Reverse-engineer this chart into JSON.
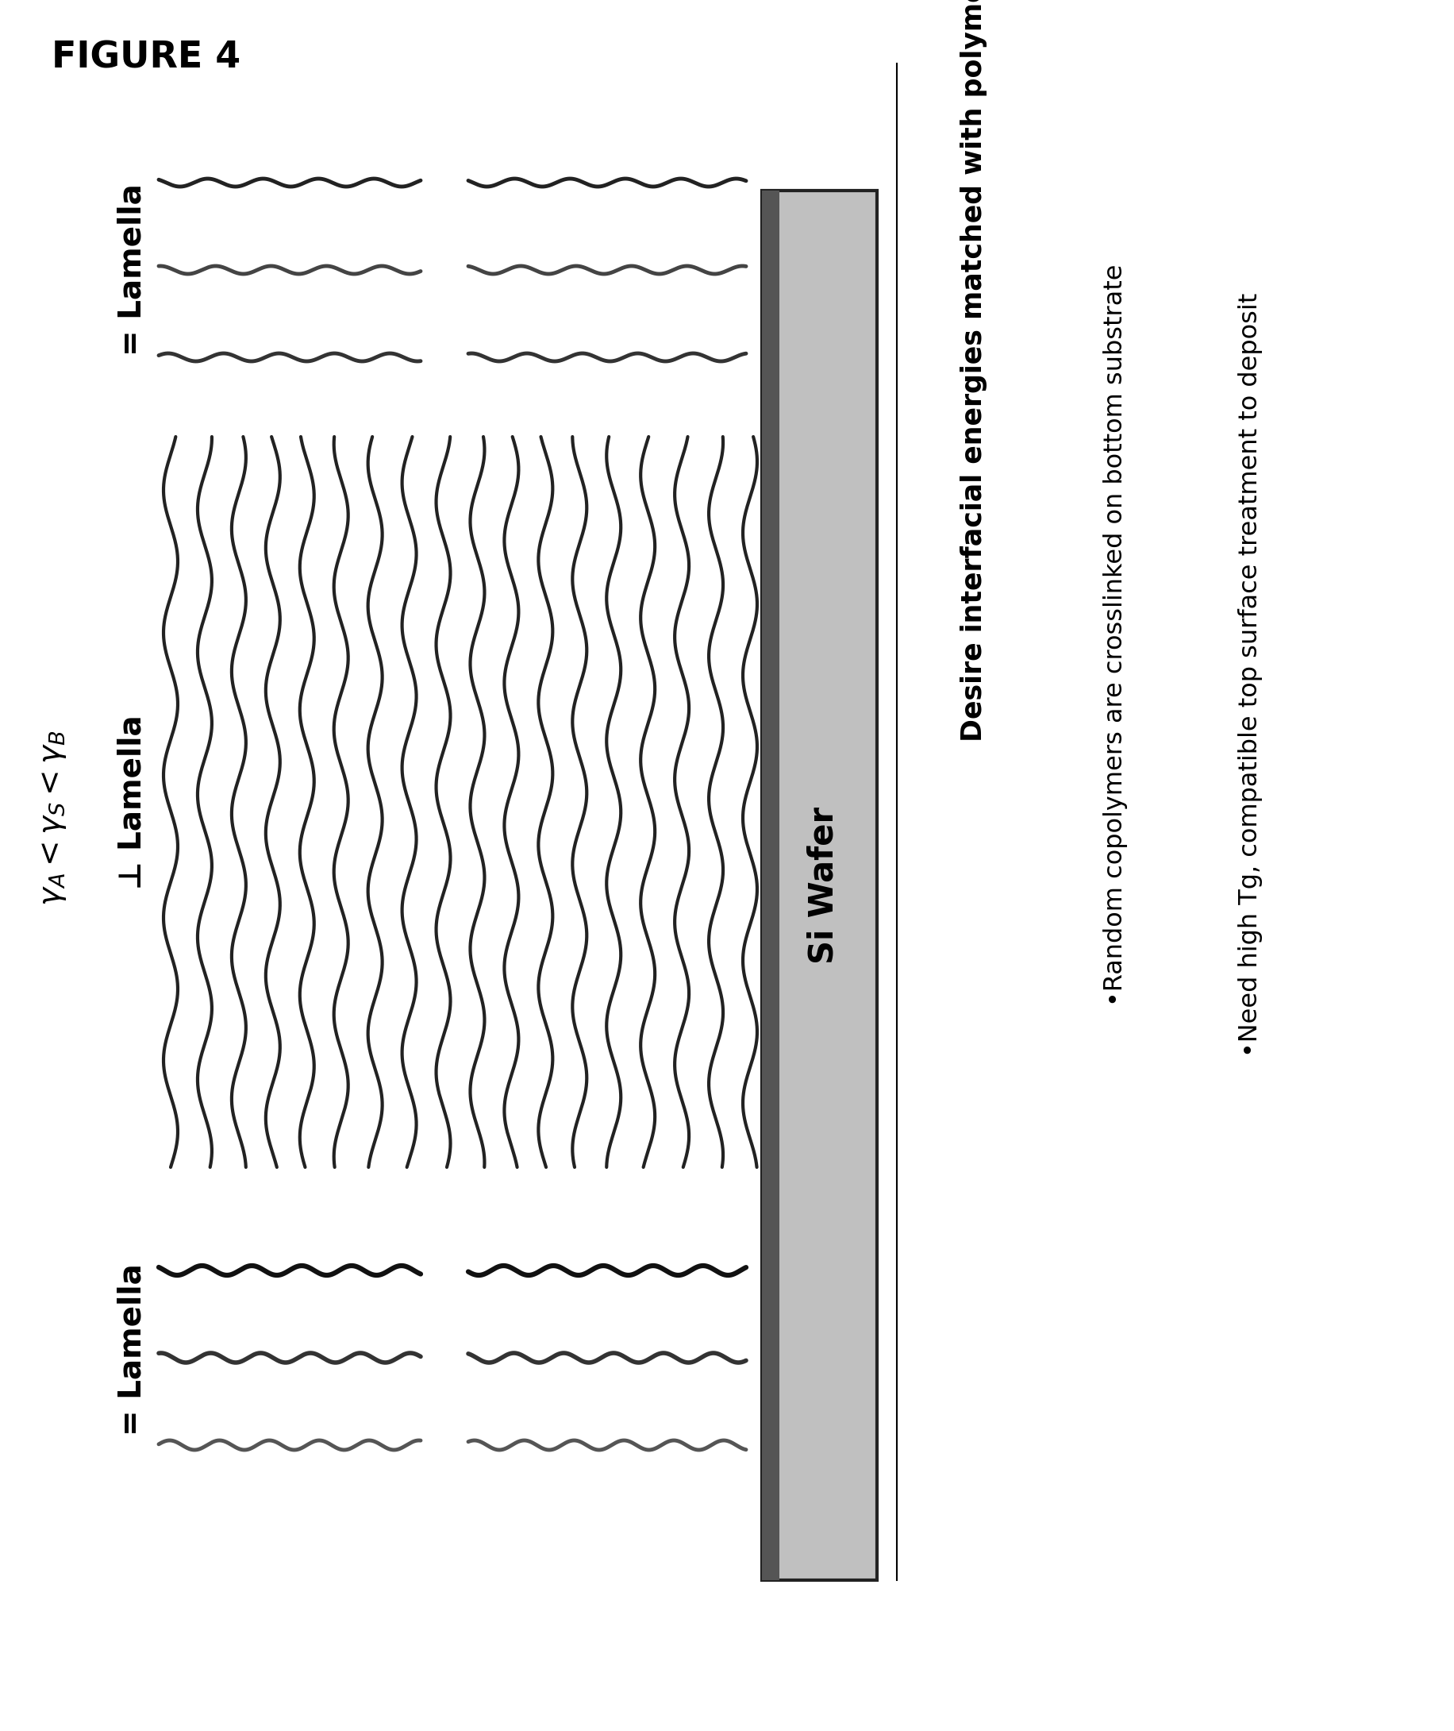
{
  "title": "FIGURE 4",
  "wafer_label": "Si Wafer",
  "condition_label": "γ_A<γ_S<γ_B",
  "perp_label": "⊥ Lamella",
  "par_bottom_label": "= Lamella",
  "par_top_label": "= Lamella",
  "desire_text": "Desire interfacial energies matched with polymer blocks",
  "bullet1": "•Random copolymers are crosslinked on bottom substrate",
  "bullet2": "•Need high Tg, compatible top surface treatment to deposit",
  "bg_color": "#ffffff",
  "wafer_face_color": "#c0c0c0",
  "wafer_dark_color": "#555555",
  "wafer_edge_color": "#222222",
  "line_color_dark": "#1a1a1a",
  "line_color_mid": "#555555"
}
